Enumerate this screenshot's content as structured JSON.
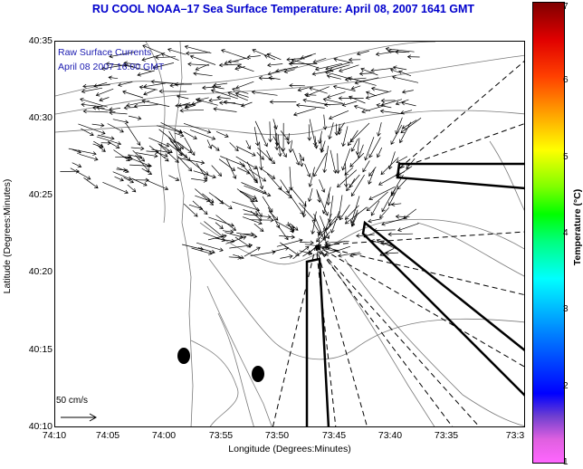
{
  "title": "RU COOL  NOAA–17  Sea Surface Temperature:  April 08, 2007 1641 GMT",
  "overlay": {
    "line1": "Raw Surface Currents",
    "line2": "April 08 2007 16:00 GMT"
  },
  "axes": {
    "ylabel": "Latitude (Degrees:Minutes)",
    "xlabel": "Longitude (Degrees:Minutes)",
    "yticks": [
      "40:35",
      "40:30",
      "40:25",
      "40:20",
      "40:15",
      "40:10"
    ],
    "xticks": [
      "74:10",
      "74:05",
      "74:00",
      "73:55",
      "73:50",
      "73:45",
      "73:40",
      "73:35",
      "73:3"
    ]
  },
  "scale": {
    "label": "50 cm/s"
  },
  "colorbar": {
    "label": "Temperature (°C)",
    "ticks": [
      "7",
      "6",
      "5",
      "4",
      "3",
      "2",
      "1"
    ],
    "colors": [
      "#800000",
      "#ff0000",
      "#ffa000",
      "#ffff00",
      "#00ff00",
      "#00ffff",
      "#0000ff",
      "#ff66ff"
    ]
  },
  "map": {
    "land_color": "#ffffff",
    "contour_color": "#888888",
    "vector_color": "#000000"
  }
}
